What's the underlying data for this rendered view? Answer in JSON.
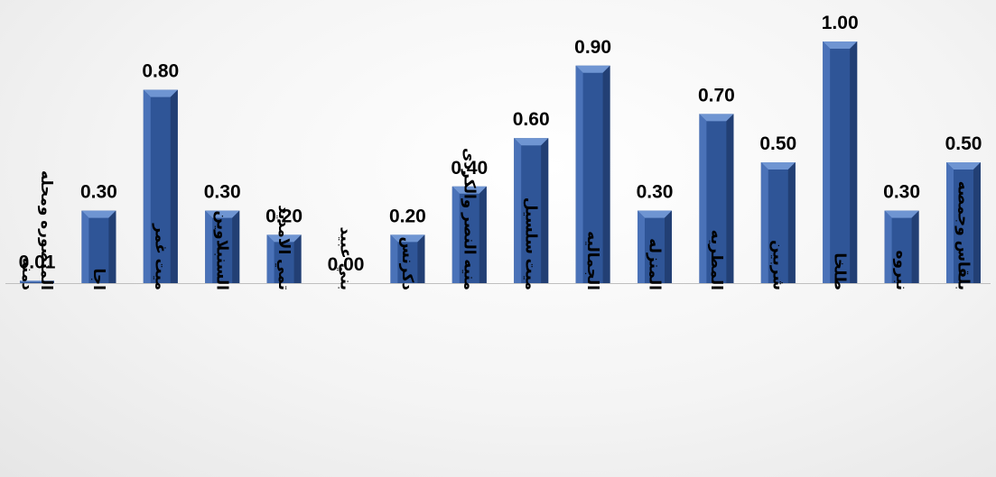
{
  "chart_data": {
    "type": "bar",
    "categories": [
      [
        "المنصوره ومحله",
        "دمنه"
      ],
      [
        "اجا"
      ],
      [
        "ميت غمر"
      ],
      [
        "السنبلاوين"
      ],
      [
        "تمي الامديد"
      ],
      [
        "بني عبيد"
      ],
      [
        "دكرنس"
      ],
      [
        "منيه النصر والكردى"
      ],
      [
        "ميت سلسيل"
      ],
      [
        "الجماليه"
      ],
      [
        "المنزله"
      ],
      [
        "المطريه"
      ],
      [
        "شربين"
      ],
      [
        "طلخا"
      ],
      [
        "نبروه"
      ],
      [
        "بلقاس وجمصه"
      ]
    ],
    "values": [
      0.01,
      0.3,
      0.8,
      0.3,
      0.2,
      0.0,
      0.2,
      0.4,
      0.6,
      0.9,
      0.3,
      0.7,
      0.5,
      1.0,
      0.3,
      0.5
    ],
    "value_labels": [
      "0.01",
      "0.30",
      "0.80",
      "0.30",
      "0.20",
      "0.00",
      "0.20",
      "0.40",
      "0.60",
      "0.90",
      "0.30",
      "0.70",
      "0.50",
      "1.00",
      "0.30",
      "0.50"
    ],
    "ylim": [
      0,
      1.0
    ],
    "grid": false,
    "legend": "none",
    "bar_style": "beveled",
    "colors": {
      "bar_face": "#2f5597",
      "bar_face_light": "#4a72b8",
      "bar_bevel_top": "#6f95d2",
      "bar_bevel_side": "#223f74",
      "axis_line": "#bfbfbf",
      "label": "#000000"
    }
  }
}
